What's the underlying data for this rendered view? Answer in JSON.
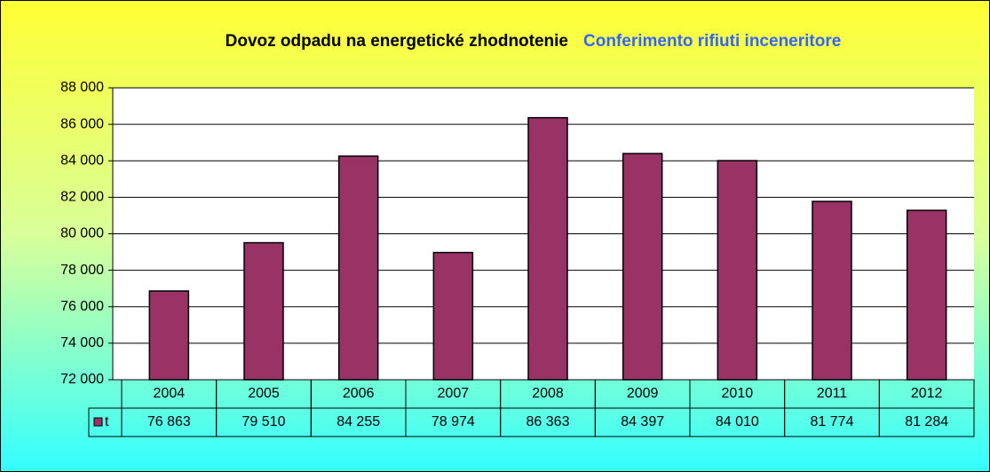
{
  "chart_data": {
    "type": "bar",
    "title": "Dovoz odpadu na energetické zhodnotenie",
    "subtitle": "Conferimento rifiuti inceneritore",
    "categories": [
      "2004",
      "2005",
      "2006",
      "2007",
      "2008",
      "2009",
      "2010",
      "2011",
      "2012"
    ],
    "series": [
      {
        "name": "t",
        "color": "#993366",
        "values": [
          76863,
          79510,
          84255,
          78974,
          86363,
          84397,
          84010,
          81774,
          81284
        ],
        "value_labels": [
          "76 863",
          "79 510",
          "84 255",
          "78 974",
          "86 363",
          "84 397",
          "84 010",
          "81 774",
          "81 284"
        ]
      }
    ],
    "ylim": [
      72000,
      88000
    ],
    "yticks": [
      {
        "value": 72000,
        "label": "72 000"
      },
      {
        "value": 74000,
        "label": "74 000"
      },
      {
        "value": 76000,
        "label": "76 000"
      },
      {
        "value": 78000,
        "label": "78 000"
      },
      {
        "value": 80000,
        "label": "80 000"
      },
      {
        "value": 82000,
        "label": "82 000"
      },
      {
        "value": 84000,
        "label": "84 000"
      },
      {
        "value": 86000,
        "label": "86 000"
      },
      {
        "value": 88000,
        "label": "88 000"
      }
    ],
    "grid": true
  }
}
